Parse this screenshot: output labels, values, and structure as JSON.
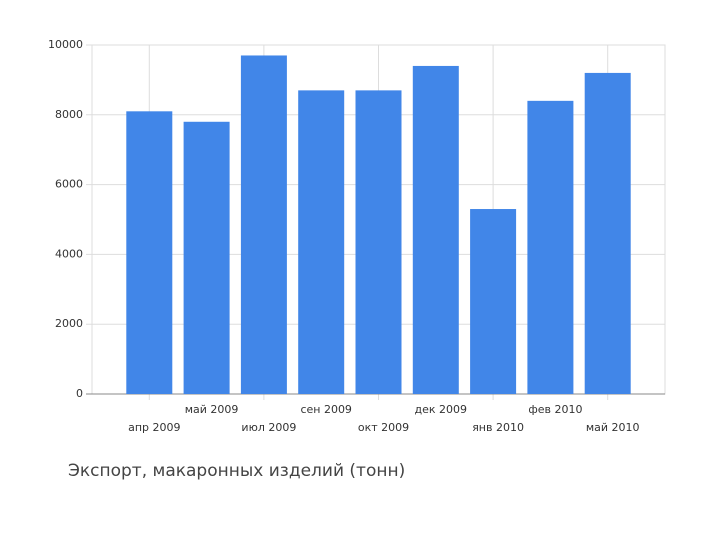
{
  "chart_data": {
    "type": "bar",
    "title": "Экспорт, макаронных изделий (тонн)",
    "categories": [
      "апр 2009",
      "май 2009",
      "июл 2009",
      "сен 2009",
      "окт 2009",
      "дек 2009",
      "янв 2010",
      "фев 2010",
      "май 2010"
    ],
    "values": [
      8100,
      7800,
      9700,
      8700,
      8700,
      9400,
      5300,
      8400,
      9200
    ],
    "color": "#4186e8",
    "ylim": [
      0,
      10000
    ],
    "yticks": [
      0,
      2000,
      4000,
      6000,
      8000,
      10000
    ],
    "grid": true
  }
}
